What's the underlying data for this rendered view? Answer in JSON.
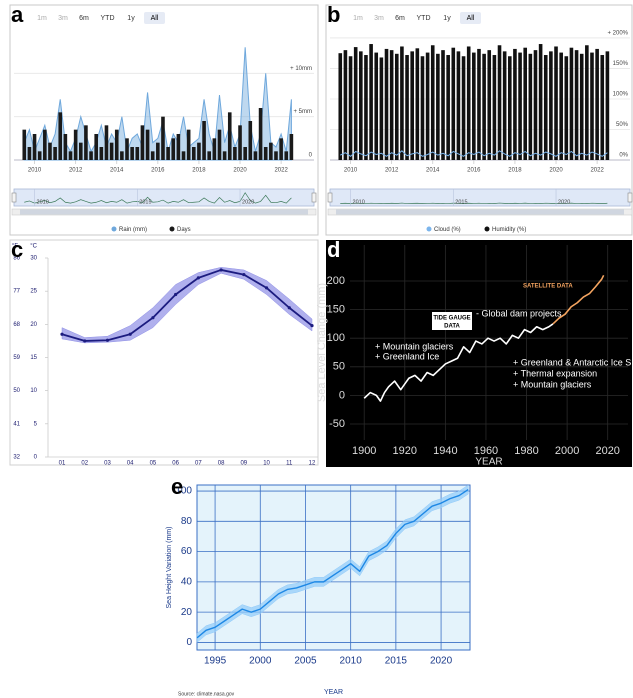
{
  "chart_data": [
    {
      "panel": "a",
      "type": "combo",
      "range_buttons": [
        "1m",
        "3m",
        "6m",
        "YTD",
        "1y",
        "All"
      ],
      "selected_range": "All",
      "x": [
        2009.5,
        2009.75,
        2010,
        2010.25,
        2010.5,
        2010.75,
        2011,
        2011.25,
        2011.5,
        2011.75,
        2012,
        2012.25,
        2012.5,
        2012.75,
        2013,
        2013.25,
        2013.5,
        2013.75,
        2014,
        2014.25,
        2014.5,
        2014.75,
        2015,
        2015.25,
        2015.5,
        2015.75,
        2016,
        2016.25,
        2016.5,
        2016.75,
        2017,
        2017.25,
        2017.5,
        2017.75,
        2018,
        2018.25,
        2018.5,
        2018.75,
        2019,
        2019.25,
        2019.5,
        2019.75,
        2020,
        2020.25,
        2020.5,
        2020.75,
        2021,
        2021.25,
        2021.5,
        2021.75,
        2022,
        2022.25,
        2022.5
      ],
      "xlim": [
        2009,
        2023.6
      ],
      "xticks": [
        2010,
        2012,
        2014,
        2016,
        2018,
        2020,
        2022
      ],
      "ylim": [
        0,
        15
      ],
      "yticks": [
        0,
        {
          "value": 5,
          "label": "+ 5mm"
        },
        {
          "value": 10,
          "label": "+ 10mm"
        }
      ],
      "grid": true,
      "navigator_ticks": [
        2010,
        2015,
        2020
      ],
      "series": [
        {
          "name": "Rain (mm)",
          "type": "area",
          "color": "#6fa8dc",
          "values": [
            2,
            3.5,
            1,
            2.5,
            4,
            1.5,
            3,
            7,
            2,
            1,
            2.5,
            5,
            3,
            1,
            2,
            4,
            1.5,
            3,
            2,
            5,
            1,
            2.5,
            3,
            1.5,
            7.8,
            2,
            2.5,
            4.5,
            1,
            3,
            2,
            5,
            1.5,
            2,
            2.5,
            7,
            3,
            1,
            7.5,
            2,
            4,
            1.5,
            3,
            13,
            4,
            1,
            3,
            10,
            2,
            1.5,
            3,
            1,
            7
          ]
        },
        {
          "name": "Days",
          "type": "bar",
          "color": "#1a1a1a",
          "values": [
            3.5,
            1.5,
            3,
            1,
            3.5,
            2,
            1.5,
            5.5,
            3,
            1,
            3.5,
            2,
            4,
            1,
            3,
            1.5,
            4,
            2,
            3.5,
            1,
            2.5,
            1.5,
            1.5,
            4,
            3.5,
            1,
            2,
            5,
            1.5,
            2.5,
            3,
            1,
            3.5,
            1.5,
            2,
            4.5,
            1,
            2.5,
            3.5,
            1,
            5.5,
            1.5,
            4,
            1.5,
            4.5,
            1,
            6,
            1.5,
            2,
            1,
            2.5,
            1,
            3
          ]
        }
      ]
    },
    {
      "panel": "b",
      "type": "combo",
      "range_buttons": [
        "1m",
        "3m",
        "6m",
        "YTD",
        "1y",
        "All"
      ],
      "selected_range": "All",
      "x": [
        2009.5,
        2009.75,
        2010,
        2010.25,
        2010.5,
        2010.75,
        2011,
        2011.25,
        2011.5,
        2011.75,
        2012,
        2012.25,
        2012.5,
        2012.75,
        2013,
        2013.25,
        2013.5,
        2013.75,
        2014,
        2014.25,
        2014.5,
        2014.75,
        2015,
        2015.25,
        2015.5,
        2015.75,
        2016,
        2016.25,
        2016.5,
        2016.75,
        2017,
        2017.25,
        2017.5,
        2017.75,
        2018,
        2018.25,
        2018.5,
        2018.75,
        2019,
        2019.25,
        2019.5,
        2019.75,
        2020,
        2020.25,
        2020.5,
        2020.75,
        2021,
        2021.25,
        2021.5,
        2021.75,
        2022,
        2022.25,
        2022.5
      ],
      "xlim": [
        2009,
        2023.6
      ],
      "xticks": [
        2010,
        2012,
        2014,
        2016,
        2018,
        2020,
        2022
      ],
      "ylim": [
        0,
        213
      ],
      "yticks": [
        {
          "value": 0,
          "label": "0%"
        },
        {
          "value": 50,
          "label": "50%"
        },
        {
          "value": 100,
          "label": "100%"
        },
        {
          "value": 150,
          "label": "150%"
        },
        {
          "value": 200,
          "label": "+ 200%"
        }
      ],
      "grid": true,
      "navigator_ticks": [
        2010,
        2015,
        2020
      ],
      "series": [
        {
          "name": "Cloud (%)",
          "type": "line",
          "color": "#7cb5ec",
          "values": [
            8,
            12,
            6,
            14,
            10,
            7,
            13,
            9,
            11,
            6,
            12,
            8,
            15,
            7,
            10,
            12,
            6,
            9,
            13,
            8,
            11,
            7,
            14,
            10,
            6,
            12,
            9,
            13,
            7,
            11,
            8,
            15,
            10,
            6,
            12,
            9,
            14,
            7,
            11,
            8,
            13,
            10,
            6,
            12,
            9,
            14,
            7,
            11,
            8,
            13,
            10,
            6,
            12
          ]
        },
        {
          "name": "Humidity (%)",
          "type": "bar",
          "color": "#111111",
          "values": [
            175,
            180,
            170,
            185,
            178,
            172,
            190,
            176,
            168,
            182,
            180,
            174,
            186,
            172,
            178,
            183,
            170,
            176,
            188,
            174,
            180,
            172,
            184,
            178,
            170,
            186,
            176,
            182,
            174,
            180,
            172,
            188,
            178,
            170,
            182,
            176,
            184,
            174,
            180,
            190,
            172,
            178,
            186,
            176,
            170,
            184,
            180,
            174,
            188,
            176,
            182,
            172,
            178
          ]
        }
      ]
    },
    {
      "panel": "c",
      "type": "line",
      "categories": [
        "01",
        "02",
        "03",
        "04",
        "05",
        "06",
        "07",
        "08",
        "09",
        "10",
        "11",
        "12"
      ],
      "ylim": [
        0,
        30
      ],
      "yticks": [
        0,
        5,
        10,
        15,
        20,
        25,
        30
      ],
      "ylabel": "°C",
      "y2lim": [
        32,
        86
      ],
      "y2ticks": [
        32,
        41,
        50,
        59,
        68,
        77,
        86
      ],
      "y2label": "°F",
      "grid": false,
      "series": [
        {
          "color": "#1c1c80",
          "values": [
            18.5,
            17.5,
            17.6,
            18.5,
            21,
            24.5,
            27,
            28.2,
            27.5,
            25.5,
            22.5,
            19.8
          ]
        }
      ],
      "band": {
        "color": "#8f8fe6",
        "low": [
          17.8,
          17.2,
          17.3,
          17.6,
          19.5,
          23,
          26,
          27.7,
          26.8,
          24.5,
          21.5,
          19
        ],
        "high": [
          19.5,
          18,
          18.2,
          19.8,
          22.5,
          26,
          27.8,
          28.6,
          28.2,
          26.6,
          23.8,
          20.8
        ]
      }
    },
    {
      "panel": "d",
      "type": "line",
      "background": "#000000",
      "xlim": [
        1893,
        2030
      ],
      "xticks": [
        1900,
        1920,
        1940,
        1960,
        1980,
        2000,
        2020
      ],
      "ylim": [
        -78,
        263
      ],
      "yticks": [
        -50,
        0,
        50,
        100,
        150,
        200
      ],
      "grid": true,
      "xlabel": "YEAR",
      "ylabel": "Sea Level Change (mm)",
      "series": [
        {
          "color": "#ffffff",
          "x": [
            1900,
            1903,
            1906,
            1908,
            1910,
            1912,
            1915,
            1918,
            1920,
            1922,
            1925,
            1928,
            1931,
            1934,
            1937,
            1940,
            1943,
            1946,
            1949,
            1952,
            1955,
            1958,
            1961,
            1964,
            1967,
            1970,
            1973,
            1976,
            1979,
            1982,
            1985,
            1988,
            1991,
            1993
          ],
          "values": [
            -5,
            5,
            0,
            -10,
            5,
            15,
            25,
            10,
            20,
            30,
            35,
            25,
            40,
            35,
            45,
            55,
            60,
            65,
            85,
            75,
            95,
            90,
            100,
            95,
            100,
            90,
            105,
            100,
            115,
            110,
            120,
            115,
            120,
            125
          ]
        },
        {
          "color": "#f4a460",
          "x": [
            1993,
            1996,
            1999,
            2002,
            2005,
            2008,
            2011,
            2014,
            2017,
            2018
          ],
          "values": [
            125,
            135,
            142,
            155,
            162,
            172,
            178,
            190,
            203,
            210
          ]
        }
      ],
      "annotations": [
        "SATELLITE DATA",
        "TIDE GAUGE",
        "DATA",
        "- Global dam projects",
        "+ Mountain glaciers",
        "+ Greenland Ice",
        "+ Greenland & Antarctic Ice Sheets",
        "+ Thermal expansion",
        "+ Mountain glaciers"
      ]
    },
    {
      "panel": "e",
      "type": "line",
      "background": "#e4f3fb",
      "x": [
        1993,
        1994,
        1995,
        1996,
        1997,
        1998,
        1999,
        2000,
        2001,
        2002,
        2003,
        2004,
        2005,
        2006,
        2007,
        2008,
        2009,
        2010,
        2011,
        2012,
        2013,
        2014,
        2015,
        2016,
        2017,
        2018,
        2019,
        2020,
        2021,
        2022,
        2023
      ],
      "xlim": [
        1993,
        2023.2
      ],
      "xticks": [
        1995,
        2000,
        2005,
        2010,
        2015,
        2020
      ],
      "ylim": [
        -5,
        104
      ],
      "yticks": [
        0,
        20,
        40,
        60,
        80,
        100
      ],
      "grid": true,
      "xlabel": "YEAR",
      "ylabel": "Sea Height Variation (mm)",
      "source": "Source: climate.nasa.gov",
      "series": [
        {
          "color": "#1e88e5",
          "values": [
            3,
            8,
            10,
            14,
            18,
            22,
            20,
            22,
            27,
            32,
            35,
            36,
            38,
            40,
            40,
            44,
            48,
            52,
            47,
            57,
            60,
            64,
            72,
            78,
            80,
            85,
            90,
            92,
            95,
            97,
            101
          ]
        }
      ],
      "band": {
        "color": "#90caf9",
        "low": [
          0,
          5,
          7,
          11,
          15,
          19,
          17,
          19,
          24,
          29,
          32,
          33,
          35,
          37,
          37,
          41,
          45,
          49,
          44,
          54,
          57,
          61,
          69,
          75,
          77,
          82,
          87,
          89,
          92,
          94,
          98
        ],
        "high": [
          6,
          11,
          13,
          17,
          21,
          25,
          23,
          25,
          30,
          35,
          38,
          39,
          41,
          43,
          43,
          47,
          51,
          55,
          50,
          60,
          63,
          67,
          75,
          81,
          83,
          88,
          93,
          95,
          98,
          100,
          104
        ]
      }
    }
  ]
}
